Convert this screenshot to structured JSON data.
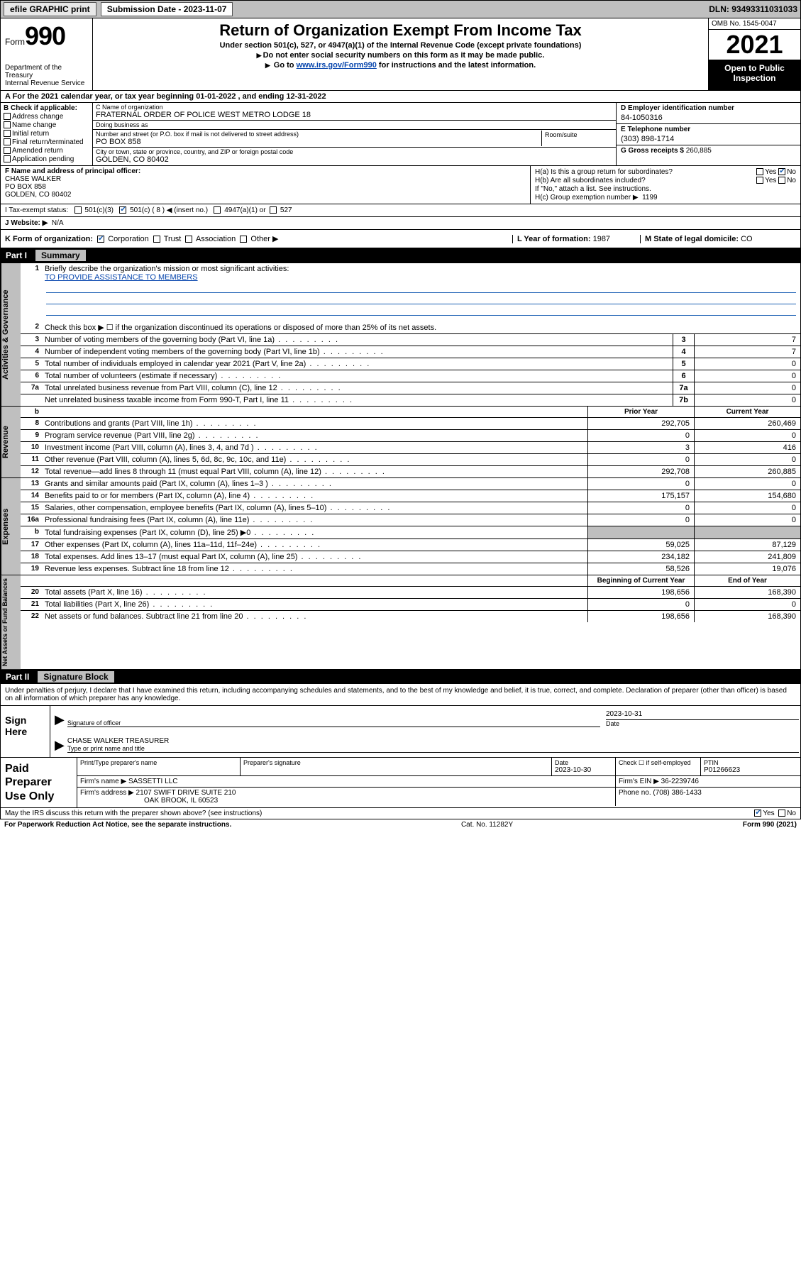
{
  "top_bar": {
    "efile": "efile GRAPHIC print",
    "submission_label": "Submission Date - 2023-11-07",
    "dln": "DLN: 93493311031033"
  },
  "header": {
    "form_label": "Form",
    "form_number": "990",
    "title": "Return of Organization Exempt From Income Tax",
    "subtitle": "Under section 501(c), 527, or 4947(a)(1) of the Internal Revenue Code (except private foundations)",
    "note1": "Do not enter social security numbers on this form as it may be made public.",
    "note2_pre": "Go to ",
    "note2_link": "www.irs.gov/Form990",
    "note2_post": " for instructions and the latest information.",
    "dept": "Department of the Treasury\nInternal Revenue Service",
    "omb": "OMB No. 1545-0047",
    "year": "2021",
    "open": "Open to Public Inspection"
  },
  "row_A": "A For the 2021 calendar year, or tax year beginning 01-01-2022   , and ending 12-31-2022",
  "col_B": {
    "title": "B Check if applicable:",
    "items": [
      "Address change",
      "Name change",
      "Initial return",
      "Final return/terminated",
      "Amended return",
      "Application pending"
    ]
  },
  "col_C": {
    "name_label": "C Name of organization",
    "name": "FRATERNAL ORDER OF POLICE WEST METRO LODGE 18",
    "dba_label": "Doing business as",
    "dba": "",
    "street_label": "Number and street (or P.O. box if mail is not delivered to street address)",
    "street": "PO BOX 858",
    "room_label": "Room/suite",
    "city_label": "City or town, state or province, country, and ZIP or foreign postal code",
    "city": "GOLDEN, CO  80402"
  },
  "col_DE": {
    "d_label": "D Employer identification number",
    "d_value": "84-1050316",
    "e_label": "E Telephone number",
    "e_value": "(303) 898-1714",
    "g_label": "G Gross receipts $",
    "g_value": "260,885"
  },
  "col_F": {
    "label": "F Name and address of principal officer:",
    "name": "CHASE WALKER",
    "street": "PO BOX 858",
    "city": "GOLDEN, CO  80402"
  },
  "col_H": {
    "ha_label": "H(a)  Is this a group return for subordinates?",
    "hb_label": "H(b)  Are all subordinates included?",
    "hb_note": "If \"No,\" attach a list. See instructions.",
    "hc_label": "H(c)  Group exemption number ▶",
    "hc_value": "1199",
    "yes": "Yes",
    "no": "No"
  },
  "row_I": {
    "label": "I   Tax-exempt status:",
    "opt1": "501(c)(3)",
    "opt2": "501(c) ( 8 ) ◀ (insert no.)",
    "opt3": "4947(a)(1) or",
    "opt4": "527"
  },
  "row_J": {
    "label": "J   Website: ▶",
    "value": "N/A"
  },
  "row_K": {
    "label": "K Form of organization:",
    "opts": [
      "Corporation",
      "Trust",
      "Association",
      "Other ▶"
    ],
    "L_label": "L Year of formation:",
    "L_value": "1987",
    "M_label": "M State of legal domicile:",
    "M_value": "CO"
  },
  "part_I": {
    "header_num": "Part I",
    "header_title": "Summary",
    "line1_num": "1",
    "line1": "Briefly describe the organization's mission or most significant activities:",
    "mission": "TO PROVIDE ASSISTANCE TO MEMBERS",
    "line2_num": "2",
    "line2": "Check this box ▶ ☐  if the organization discontinued its operations or disposed of more than 25% of its net assets.",
    "gov_rows": [
      {
        "n": "3",
        "t": "Number of voting members of the governing body (Part VI, line 1a)",
        "box": "3",
        "v": "7"
      },
      {
        "n": "4",
        "t": "Number of independent voting members of the governing body (Part VI, line 1b)",
        "box": "4",
        "v": "7"
      },
      {
        "n": "5",
        "t": "Total number of individuals employed in calendar year 2021 (Part V, line 2a)",
        "box": "5",
        "v": "0"
      },
      {
        "n": "6",
        "t": "Total number of volunteers (estimate if necessary)",
        "box": "6",
        "v": "0"
      },
      {
        "n": "7a",
        "t": "Total unrelated business revenue from Part VIII, column (C), line 12",
        "box": "7a",
        "v": "0"
      },
      {
        "n": "",
        "t": "Net unrelated business taxable income from Form 990-T, Part I, line 11",
        "box": "7b",
        "v": "0"
      }
    ],
    "col_prior": "Prior Year",
    "col_current": "Current Year",
    "rev_rows": [
      {
        "n": "8",
        "t": "Contributions and grants (Part VIII, line 1h)",
        "p": "292,705",
        "c": "260,469"
      },
      {
        "n": "9",
        "t": "Program service revenue (Part VIII, line 2g)",
        "p": "0",
        "c": "0"
      },
      {
        "n": "10",
        "t": "Investment income (Part VIII, column (A), lines 3, 4, and 7d )",
        "p": "3",
        "c": "416"
      },
      {
        "n": "11",
        "t": "Other revenue (Part VIII, column (A), lines 5, 6d, 8c, 9c, 10c, and 11e)",
        "p": "0",
        "c": "0"
      },
      {
        "n": "12",
        "t": "Total revenue—add lines 8 through 11 (must equal Part VIII, column (A), line 12)",
        "p": "292,708",
        "c": "260,885"
      }
    ],
    "exp_rows": [
      {
        "n": "13",
        "t": "Grants and similar amounts paid (Part IX, column (A), lines 1–3 )",
        "p": "0",
        "c": "0"
      },
      {
        "n": "14",
        "t": "Benefits paid to or for members (Part IX, column (A), line 4)",
        "p": "175,157",
        "c": "154,680"
      },
      {
        "n": "15",
        "t": "Salaries, other compensation, employee benefits (Part IX, column (A), lines 5–10)",
        "p": "0",
        "c": "0"
      },
      {
        "n": "16a",
        "t": "Professional fundraising fees (Part IX, column (A), line 11e)",
        "p": "0",
        "c": "0"
      },
      {
        "n": "b",
        "t": "Total fundraising expenses (Part IX, column (D), line 25) ▶0",
        "p": "",
        "c": "",
        "shade": true
      },
      {
        "n": "17",
        "t": "Other expenses (Part IX, column (A), lines 11a–11d, 11f–24e)",
        "p": "59,025",
        "c": "87,129"
      },
      {
        "n": "18",
        "t": "Total expenses. Add lines 13–17 (must equal Part IX, column (A), line 25)",
        "p": "234,182",
        "c": "241,809"
      },
      {
        "n": "19",
        "t": "Revenue less expenses. Subtract line 18 from line 12",
        "p": "58,526",
        "c": "19,076"
      }
    ],
    "col_begin": "Beginning of Current Year",
    "col_end": "End of Year",
    "net_rows": [
      {
        "n": "20",
        "t": "Total assets (Part X, line 16)",
        "p": "198,656",
        "c": "168,390"
      },
      {
        "n": "21",
        "t": "Total liabilities (Part X, line 26)",
        "p": "0",
        "c": "0"
      },
      {
        "n": "22",
        "t": "Net assets or fund balances. Subtract line 21 from line 20",
        "p": "198,656",
        "c": "168,390"
      }
    ],
    "vtab_gov": "Activities & Governance",
    "vtab_rev": "Revenue",
    "vtab_exp": "Expenses",
    "vtab_net": "Net Assets or Fund Balances"
  },
  "part_II": {
    "header_num": "Part II",
    "header_title": "Signature Block",
    "intro": "Under penalties of perjury, I declare that I have examined this return, including accompanying schedules and statements, and to the best of my knowledge and belief, it is true, correct, and complete. Declaration of preparer (other than officer) is based on all information of which preparer has any knowledge.",
    "sign_here": "Sign Here",
    "sig_officer_label": "Signature of officer",
    "sig_date": "2023-10-31",
    "date_label": "Date",
    "name_title": "CHASE WALKER  TREASURER",
    "name_title_label": "Type or print name and title",
    "paid_label": "Paid Preparer Use Only",
    "prep_name_label": "Print/Type preparer's name",
    "prep_sig_label": "Preparer's signature",
    "prep_date_label": "Date",
    "prep_date": "2023-10-30",
    "check_if_label": "Check ☐ if self-employed",
    "ptin_label": "PTIN",
    "ptin": "P01266623",
    "firm_name_label": "Firm's name    ▶",
    "firm_name": "SASSETTI LLC",
    "firm_ein_label": "Firm's EIN ▶",
    "firm_ein": "36-2239746",
    "firm_addr_label": "Firm's address ▶",
    "firm_addr1": "2107 SWIFT DRIVE SUITE 210",
    "firm_addr2": "OAK BROOK, IL  60523",
    "phone_label": "Phone no.",
    "phone": "(708) 386-1433",
    "discuss": "May the IRS discuss this return with the preparer shown above? (see instructions)",
    "paperwork": "For Paperwork Reduction Act Notice, see the separate instructions.",
    "cat": "Cat. No. 11282Y",
    "form_foot": "Form 990 (2021)"
  }
}
